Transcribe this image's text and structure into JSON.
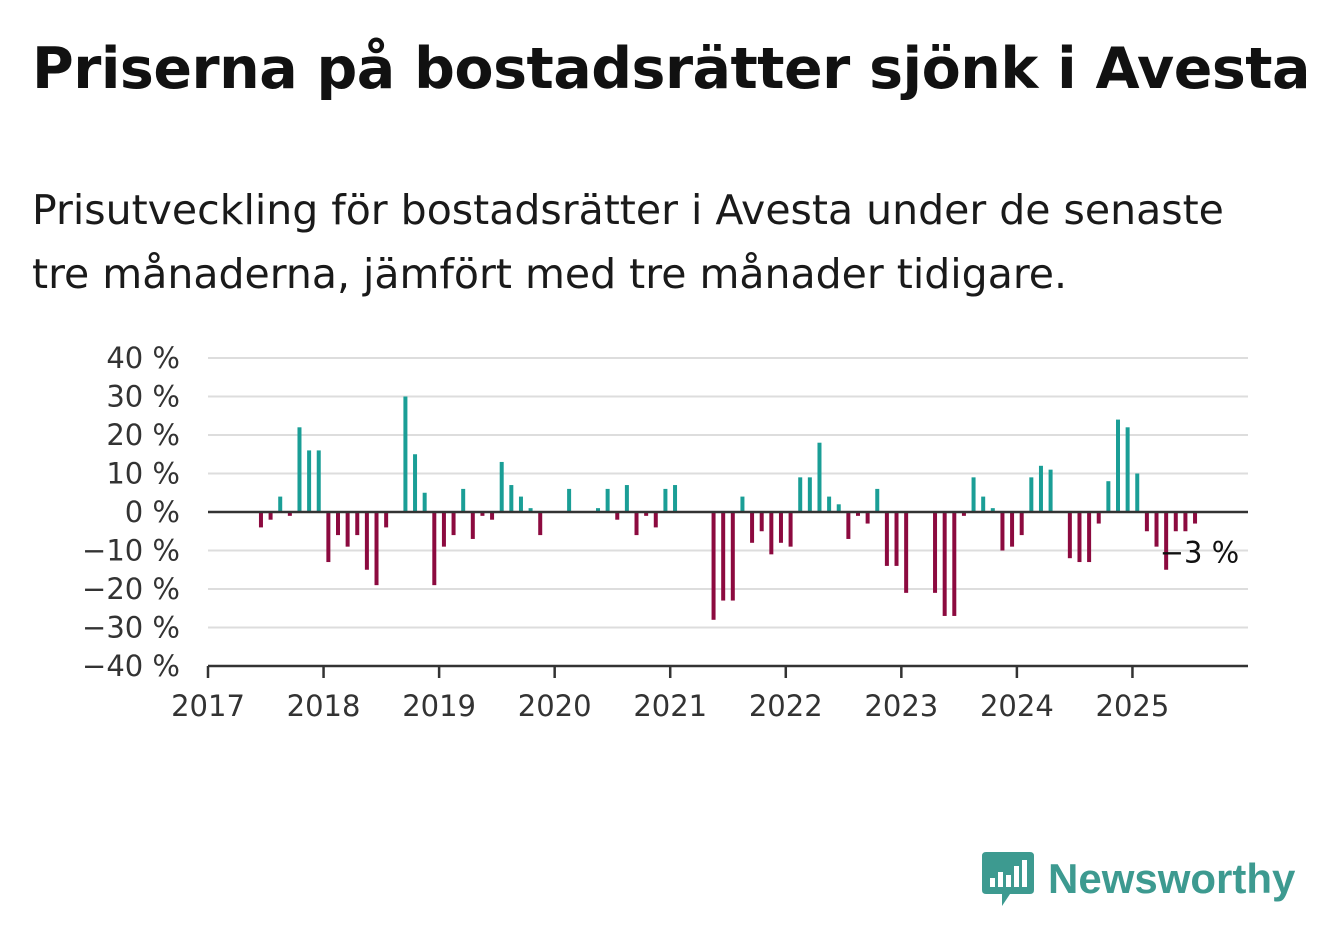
{
  "header": {
    "title": "Priserna på bostadsrätter sjönk i Avesta",
    "subtitle": "Prisutveckling för bostadsrätter i Avesta under de senaste tre månaderna, jämfört med tre månader tidigare."
  },
  "branding": {
    "logo_text": "Newsworthy"
  },
  "colors": {
    "positive": "#1a9e96",
    "negative": "#8c0a3f",
    "grid": "#dddddd",
    "axis": "#333333"
  },
  "chart_data": {
    "type": "bar",
    "ylim": [
      -40,
      40
    ],
    "yticks": [
      40,
      30,
      20,
      10,
      0,
      -10,
      -20,
      -30,
      -40
    ],
    "ytick_labels": [
      "40 %",
      "30 %",
      "20 %",
      "10 %",
      "0 %",
      "−10 %",
      "−20 %",
      "−30 %",
      "−40 %"
    ],
    "xlim": [
      2017,
      2026
    ],
    "xtick_labels": [
      "2017",
      "2018",
      "2019",
      "2020",
      "2021",
      "2022",
      "2023",
      "2024",
      "2025"
    ],
    "xticks": [
      2017,
      2018,
      2019,
      2020,
      2021,
      2022,
      2023,
      2024,
      2025
    ],
    "grid": true,
    "annotation": {
      "text": "−3 %",
      "x": 2025.58,
      "value": -3
    },
    "months_start": "2017-01",
    "values": [
      null,
      null,
      null,
      null,
      null,
      -4,
      -2,
      4,
      -1,
      22,
      16,
      16,
      -13,
      -6,
      -9,
      -6,
      -15,
      -19,
      -4,
      null,
      30,
      15,
      5,
      -19,
      -9,
      -6,
      6,
      -7,
      -1,
      -2,
      13,
      7,
      4,
      1,
      -6,
      null,
      null,
      6,
      null,
      null,
      1,
      6,
      -2,
      7,
      -6,
      -1,
      -4,
      6,
      7,
      null,
      null,
      null,
      -28,
      -23,
      -23,
      4,
      -8,
      -5,
      -11,
      -8,
      -9,
      9,
      9,
      18,
      4,
      2,
      -7,
      -1,
      -3,
      6,
      -14,
      -14,
      -21,
      null,
      null,
      -21,
      -27,
      -27,
      -1,
      9,
      4,
      1,
      -10,
      -9,
      -6,
      9,
      12,
      11,
      null,
      -12,
      -13,
      -13,
      -3,
      8,
      24,
      22,
      10,
      -5,
      -9,
      -15,
      -5,
      -5,
      -3
    ]
  }
}
